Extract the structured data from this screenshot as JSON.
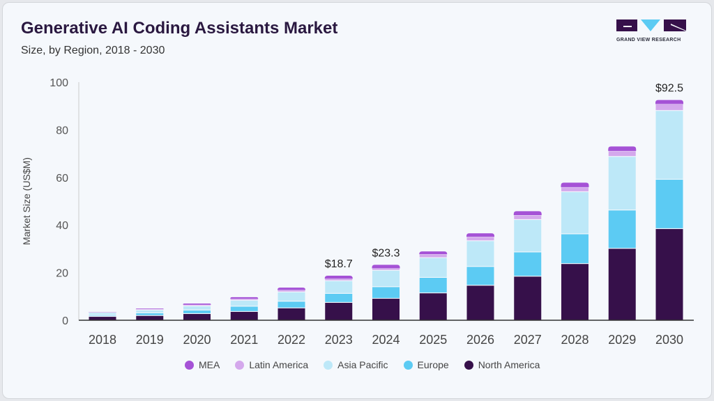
{
  "header": {
    "title": "Generative AI Coding Assistants Market",
    "subtitle": "Size, by Region, 2018 - 2030"
  },
  "logo": {
    "text": "GRAND VIEW RESEARCH"
  },
  "chart_data": {
    "type": "bar",
    "stacked": true,
    "title": "Generative AI Coding Assistants Market",
    "subtitle": "Size, by Region, 2018 - 2030",
    "xlabel": "",
    "ylabel": "Market Size (US$M)",
    "ylim": [
      0,
      100
    ],
    "yticks": [
      0,
      20,
      40,
      60,
      80,
      100
    ],
    "grid": false,
    "legend_position": "bottom",
    "categories": [
      "2018",
      "2019",
      "2020",
      "2021",
      "2022",
      "2023",
      "2024",
      "2025",
      "2026",
      "2027",
      "2028",
      "2029",
      "2030"
    ],
    "series": [
      {
        "name": "North America",
        "color": "#36104a",
        "values": [
          1.6,
          2.0,
          2.8,
          3.7,
          5.2,
          7.5,
          9.2,
          11.5,
          14.7,
          18.5,
          23.8,
          30.2,
          38.5
        ]
      },
      {
        "name": "Europe",
        "color": "#5ccbf3",
        "values": [
          0.5,
          1.1,
          1.5,
          2.2,
          2.8,
          3.8,
          4.9,
          6.5,
          7.9,
          10.2,
          12.5,
          16.1,
          20.7
        ]
      },
      {
        "name": "Asia Pacific",
        "color": "#bde8f8",
        "values": [
          1.1,
          1.2,
          1.7,
          2.5,
          3.9,
          5.3,
          6.9,
          8.3,
          10.8,
          13.6,
          17.7,
          22.5,
          28.9
        ]
      },
      {
        "name": "Latin America",
        "color": "#d4a8ec",
        "values": [
          0.1,
          0.3,
          0.5,
          0.6,
          0.8,
          0.8,
          0.8,
          1.4,
          1.6,
          1.8,
          1.9,
          2.3,
          2.7
        ]
      },
      {
        "name": "MEA",
        "color": "#a552d6",
        "values": [
          0.1,
          0.3,
          0.5,
          0.7,
          1.0,
          1.3,
          1.5,
          1.2,
          1.5,
          1.7,
          1.9,
          1.9,
          1.7
        ]
      }
    ],
    "annotations": [
      {
        "category": "2023",
        "text": "$18.7"
      },
      {
        "category": "2024",
        "text": "$23.3"
      },
      {
        "category": "2030",
        "text": "$92.5"
      }
    ]
  },
  "legend": [
    "MEA",
    "Latin America",
    "Asia Pacific",
    "Europe",
    "North America"
  ]
}
